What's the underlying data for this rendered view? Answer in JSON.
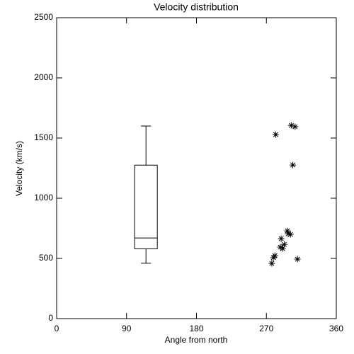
{
  "chart_data": {
    "type": "scatter",
    "title": "Velocity distribution",
    "x_label": "Angle from north",
    "y_label": "Velocity (km/s)",
    "xlim": [
      0,
      360
    ],
    "xticks": [
      0,
      90,
      180,
      270,
      360
    ],
    "ylim": [
      0,
      2500
    ],
    "yticks": [
      0,
      500,
      1000,
      1500,
      2000,
      2500
    ],
    "color": "#000000",
    "box": {
      "x": 115,
      "low": 460,
      "q1": 580,
      "median": 670,
      "q3": 1275,
      "high": 1600
    },
    "x": [
      282,
      302,
      307,
      304,
      289,
      297,
      298,
      301,
      288,
      291,
      293,
      281,
      279,
      277,
      310
    ],
    "values": [
      1529,
      1605,
      1594,
      1276,
      664,
      729,
      705,
      700,
      594,
      582,
      617,
      523,
      506,
      459,
      494
    ]
  }
}
